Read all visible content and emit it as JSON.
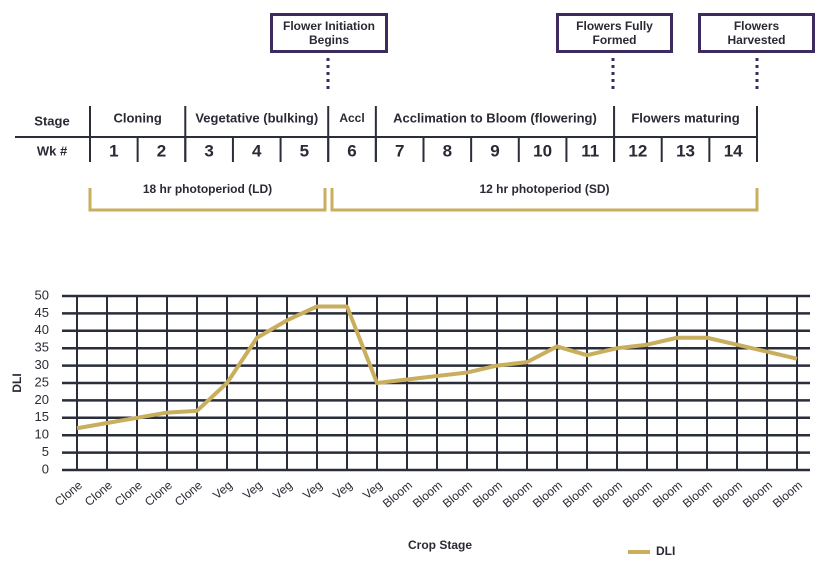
{
  "timeline": {
    "stage_label": "Stage",
    "week_label": "Wk #",
    "stages": [
      "Cloning",
      "Vegetative (bulking)",
      "Accl",
      "Acclimation to Bloom (flowering)",
      "Flowers maturing"
    ],
    "weeks": [
      1,
      2,
      3,
      4,
      5,
      6,
      7,
      8,
      9,
      10,
      11,
      12,
      13,
      14
    ],
    "milestones": [
      "Flower Initiation Begins",
      "Flowers Fully Formed",
      "Flowers Harvested"
    ],
    "photoperiods": [
      "18 hr photoperiod (LD)",
      "12 hr photoperiod (SD)"
    ]
  },
  "chart_data": {
    "type": "line",
    "x_label": "Crop Stage",
    "y_label": "DLI",
    "categories": [
      "Clone",
      "Clone",
      "Clone",
      "Clone",
      "Clone",
      "Veg",
      "Veg",
      "Veg",
      "Veg",
      "Veg",
      "Veg",
      "Bloom",
      "Bloom",
      "Bloom",
      "Bloom",
      "Bloom",
      "Bloom",
      "Bloom",
      "Bloom",
      "Bloom",
      "Bloom",
      "Bloom",
      "Bloom",
      "Bloom",
      "Bloom"
    ],
    "series": [
      {
        "name": "DLI",
        "color": "#c9ae5d",
        "values": [
          12,
          13.5,
          15,
          16.5,
          17,
          25,
          38,
          43,
          47,
          47,
          25,
          26,
          27,
          28,
          30,
          31,
          35.5,
          33,
          35,
          36,
          38,
          38,
          36,
          34,
          32
        ]
      }
    ],
    "ylim": [
      0,
      50
    ],
    "yticks": [
      0,
      5,
      10,
      15,
      20,
      25,
      30,
      35,
      40,
      45,
      50
    ],
    "grid": true,
    "legend": "bottom-right"
  }
}
